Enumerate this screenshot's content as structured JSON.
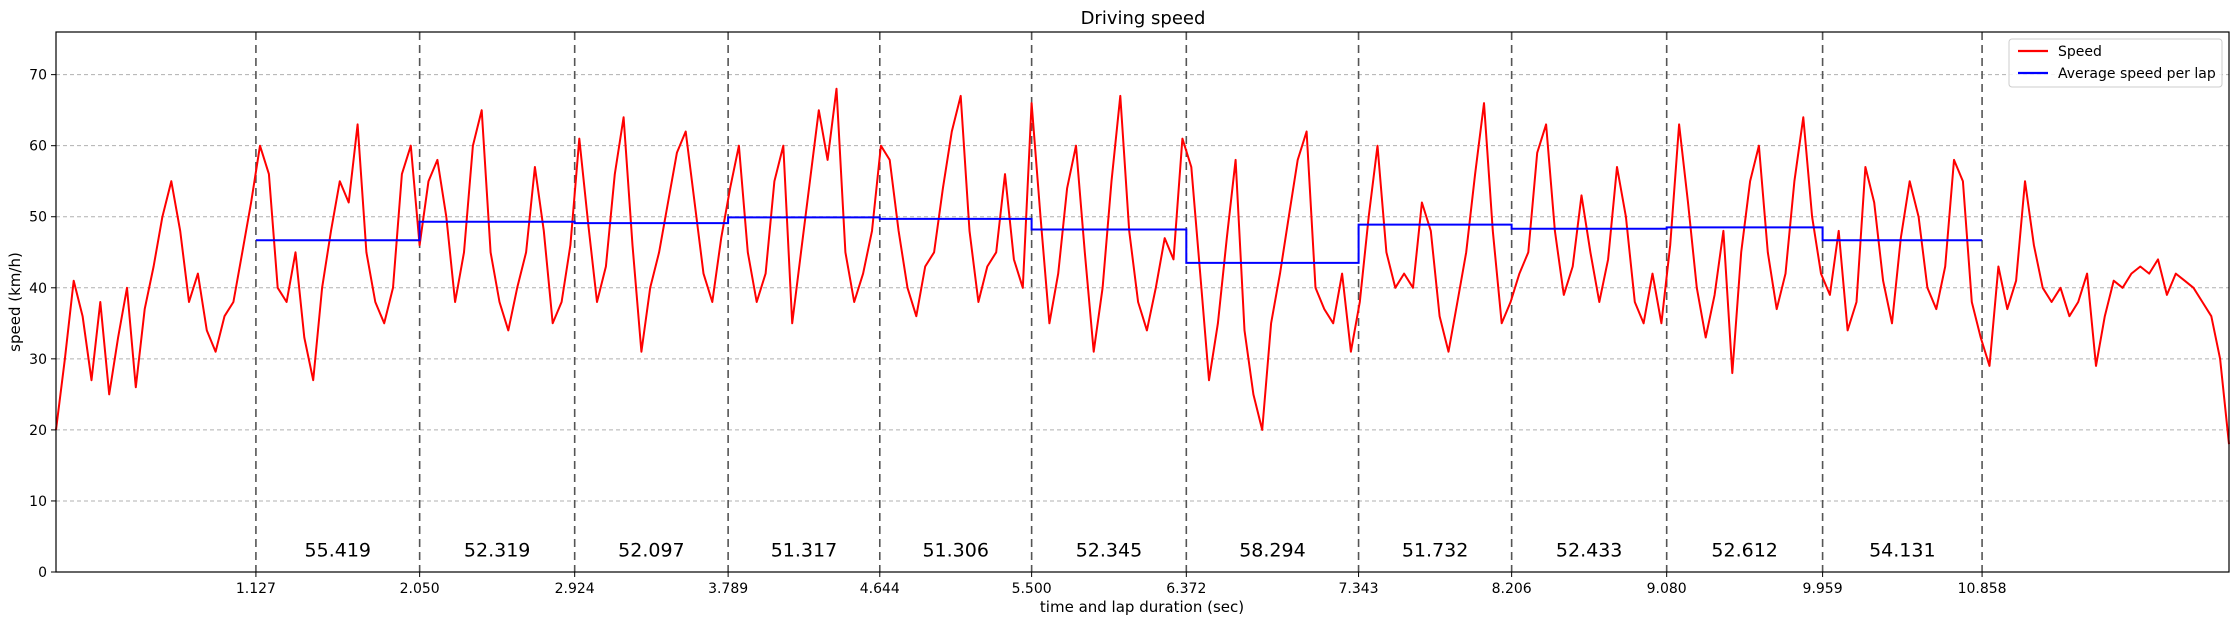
{
  "chart_data": {
    "type": "line",
    "title": "Driving speed",
    "xlabel": "time and lap duration (sec)",
    "ylabel": "speed (km/h)",
    "xlim": [
      0,
      12.25
    ],
    "ylim": [
      0,
      76
    ],
    "y_ticks": [
      0,
      10,
      20,
      30,
      40,
      50,
      60,
      70
    ],
    "x_ticks": [
      1.127,
      2.05,
      2.924,
      3.789,
      4.644,
      5.5,
      6.372,
      7.343,
      8.206,
      9.08,
      9.959,
      10.858
    ],
    "x_tick_labels": [
      "1.127",
      "2.050",
      "2.924",
      "3.789",
      "4.644",
      "5.500",
      "6.372",
      "7.343",
      "8.206",
      "9.080",
      "9.959",
      "10.858"
    ],
    "grid": "horizontal dashed",
    "lap_boundaries": [
      1.127,
      2.05,
      2.924,
      3.789,
      4.644,
      5.5,
      6.372,
      7.343,
      8.206,
      9.08,
      9.959,
      10.858
    ],
    "lap_times": [
      "55.419",
      "52.319",
      "52.097",
      "51.317",
      "51.306",
      "52.345",
      "58.294",
      "51.732",
      "52.433",
      "52.612",
      "54.131"
    ],
    "series": [
      {
        "name": "Speed",
        "color": "#ff0000",
        "x": [
          0.0,
          0.05,
          0.1,
          0.15,
          0.2,
          0.25,
          0.3,
          0.35,
          0.4,
          0.45,
          0.5,
          0.55,
          0.6,
          0.65,
          0.7,
          0.75,
          0.8,
          0.85,
          0.9,
          0.95,
          1.0,
          1.05,
          1.1,
          1.15,
          1.2,
          1.25,
          1.3,
          1.35,
          1.4,
          1.45,
          1.5,
          1.55,
          1.6,
          1.65,
          1.7,
          1.75,
          1.8,
          1.85,
          1.9,
          1.95,
          2.0,
          2.05,
          2.1,
          2.15,
          2.2,
          2.25,
          2.3,
          2.35,
          2.4,
          2.45,
          2.5,
          2.55,
          2.6,
          2.65,
          2.7,
          2.75,
          2.8,
          2.85,
          2.9,
          2.95,
          3.0,
          3.05,
          3.1,
          3.15,
          3.2,
          3.25,
          3.3,
          3.35,
          3.4,
          3.45,
          3.5,
          3.55,
          3.6,
          3.65,
          3.7,
          3.75,
          3.8,
          3.85,
          3.9,
          3.95,
          4.0,
          4.05,
          4.1,
          4.15,
          4.2,
          4.25,
          4.3,
          4.35,
          4.4,
          4.45,
          4.5,
          4.55,
          4.6,
          4.65,
          4.7,
          4.75,
          4.8,
          4.85,
          4.9,
          4.95,
          5.0,
          5.05,
          5.1,
          5.15,
          5.2,
          5.25,
          5.3,
          5.35,
          5.4,
          5.45,
          5.5,
          5.55,
          5.6,
          5.65,
          5.7,
          5.75,
          5.8,
          5.85,
          5.9,
          5.95,
          6.0,
          6.05,
          6.1,
          6.15,
          6.2,
          6.25,
          6.3,
          6.35,
          6.4,
          6.45,
          6.5,
          6.55,
          6.6,
          6.65,
          6.7,
          6.75,
          6.8,
          6.85,
          6.9,
          6.95,
          7.0,
          7.05,
          7.1,
          7.15,
          7.2,
          7.25,
          7.3,
          7.35,
          7.4,
          7.45,
          7.5,
          7.55,
          7.6,
          7.65,
          7.7,
          7.75,
          7.8,
          7.85,
          7.9,
          7.95,
          8.0,
          8.05,
          8.1,
          8.15,
          8.2,
          8.25,
          8.3,
          8.35,
          8.4,
          8.45,
          8.5,
          8.55,
          8.6,
          8.65,
          8.7,
          8.75,
          8.8,
          8.85,
          8.9,
          8.95,
          9.0,
          9.05,
          9.1,
          9.15,
          9.2,
          9.25,
          9.3,
          9.35,
          9.4,
          9.45,
          9.5,
          9.55,
          9.6,
          9.65,
          9.7,
          9.75,
          9.8,
          9.85,
          9.9,
          9.95,
          10.0,
          10.05,
          10.1,
          10.15,
          10.2,
          10.25,
          10.3,
          10.35,
          10.4,
          10.45,
          10.5,
          10.55,
          10.6,
          10.65,
          10.7,
          10.75,
          10.8,
          10.85,
          10.9,
          10.95,
          11.0,
          11.05,
          11.1,
          11.15,
          11.2,
          11.25,
          11.3,
          11.35,
          11.4,
          11.45,
          11.5,
          11.55,
          11.6,
          11.65,
          11.7,
          11.75,
          11.8,
          11.85,
          11.9,
          11.95,
          12.0,
          12.05,
          12.1,
          12.15,
          12.2,
          12.25
        ],
        "y": [
          20,
          30,
          41,
          36,
          27,
          38,
          25,
          33,
          40,
          26,
          37,
          43,
          50,
          55,
          48,
          38,
          42,
          34,
          31,
          36,
          38,
          45,
          52,
          60,
          56,
          40,
          38,
          45,
          33,
          27,
          40,
          48,
          55,
          52,
          63,
          45,
          38,
          35,
          40,
          56,
          60,
          46,
          55,
          58,
          50,
          38,
          45,
          60,
          65,
          45,
          38,
          34,
          40,
          45,
          57,
          48,
          35,
          38,
          46,
          61,
          49,
          38,
          43,
          56,
          64,
          46,
          31,
          40,
          45,
          52,
          59,
          62,
          52,
          42,
          38,
          47,
          54,
          60,
          45,
          38,
          42,
          55,
          60,
          35,
          45,
          55,
          65,
          58,
          68,
          45,
          38,
          42,
          48,
          60,
          58,
          48,
          40,
          36,
          43,
          45,
          54,
          62,
          67,
          48,
          38,
          43,
          45,
          56,
          44,
          40,
          66,
          50,
          35,
          42,
          54,
          60,
          45,
          31,
          40,
          55,
          67,
          48,
          38,
          34,
          40,
          47,
          44,
          61,
          57,
          42,
          27,
          35,
          47,
          58,
          34,
          25,
          20,
          35,
          42,
          50,
          58,
          62,
          40,
          37,
          35,
          42,
          31,
          38,
          50,
          60,
          45,
          40,
          42,
          40,
          52,
          48,
          36,
          31,
          38,
          45,
          56,
          66,
          48,
          35,
          38,
          42,
          45,
          59,
          63,
          48,
          39,
          43,
          53,
          45,
          38,
          44,
          57,
          50,
          38,
          35,
          42,
          35,
          46,
          63,
          52,
          40,
          33,
          39,
          48,
          28,
          45,
          55,
          60,
          45,
          37,
          42,
          55,
          64,
          50,
          42,
          39,
          48,
          34,
          38,
          57,
          52,
          41,
          35,
          47,
          55,
          50,
          40,
          37,
          43,
          58,
          55,
          38,
          33,
          29,
          43,
          37,
          41,
          55,
          46,
          40,
          38,
          40,
          36,
          38,
          42,
          29,
          36,
          41,
          40,
          42,
          43,
          42,
          44,
          39,
          42,
          41,
          40,
          38,
          36,
          30,
          18
        ]
      },
      {
        "name": "Average speed per lap",
        "color": "#0000ff",
        "x_start": [
          1.127,
          2.05,
          2.924,
          3.789,
          4.644,
          5.5,
          6.372,
          7.343,
          8.206,
          9.08,
          9.959
        ],
        "x_end": [
          2.05,
          2.924,
          3.789,
          4.644,
          5.5,
          6.372,
          7.343,
          8.206,
          9.08,
          9.959,
          10.858
        ],
        "values": [
          46.7,
          49.3,
          49.1,
          49.9,
          49.7,
          48.2,
          43.5,
          48.9,
          48.3,
          48.5,
          46.7
        ]
      }
    ],
    "legend": {
      "position": "top-right",
      "entries": [
        {
          "label": "Speed",
          "color": "#ff0000"
        },
        {
          "label": "Average speed per lap",
          "color": "#0000ff"
        }
      ]
    }
  }
}
